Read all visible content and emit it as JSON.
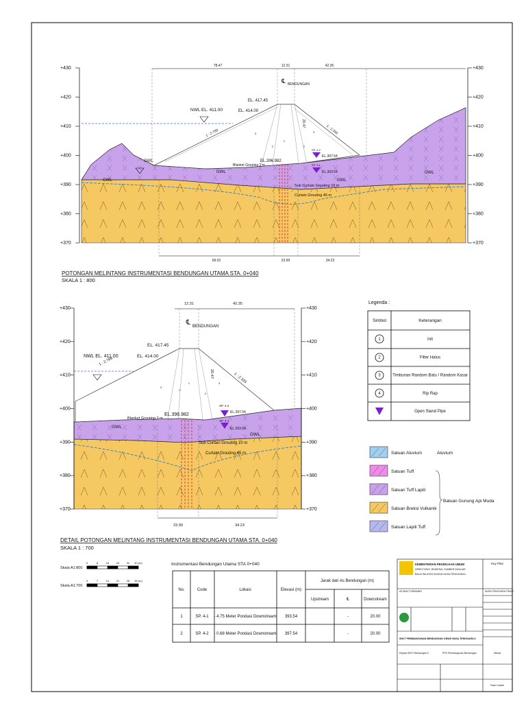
{
  "section_1": {
    "elevations": [
      "+430",
      "+420",
      "+410",
      "+400",
      "+390",
      "+380",
      "+370"
    ],
    "dimensions_top": [
      "78.47",
      "12.31",
      "42.35"
    ],
    "dimensions_bottom": [
      "69.02",
      "23.99",
      "34.23"
    ],
    "nwl": "NWL EL. 411.00",
    "crest": "EL. 417.45",
    "crest_2": "EL. 414.00",
    "centerline": "℄",
    "dam_name": "BENDUNGAN",
    "slope_up": "1 : 2.789",
    "slope_down": "1 : 2.333",
    "core_dim": "20.47",
    "gwl": "GWL",
    "blanket": "Blanket Grouting 3 m",
    "el_base": "EL.396.982",
    "sp_a": "SP. 4-2",
    "sp_b": "SP. 4-1",
    "el_sp_a": "EL.397.54",
    "el_sp_b": "EL.393.54",
    "sub_curtain": "Sub Curtain Grouting 10 m",
    "curtain": "Curtain Grouting 45 m",
    "title": "POTONGAN MELINTANG INSTRUMENTASI BENDUNGAN UTAMA STA. 0+040",
    "scale": "SKALA 1 : 800"
  },
  "section_2": {
    "elevations": [
      "+430",
      "+420",
      "+410",
      "+400",
      "+390",
      "+380",
      "+370"
    ],
    "dimensions_top": [
      "12.31",
      "42.35"
    ],
    "dimensions_bottom": [
      "23.99",
      "34.23"
    ],
    "nwl": "NWL EL. 411.00",
    "crest": "EL. 417.45",
    "crest_2": "EL. 414.00",
    "centerline": "℄",
    "dam_name": "BENDUNGAN",
    "slope_up": "1 : 2.789",
    "slope_down": "1 : 2.333",
    "core_dim": "20.47",
    "gwl": "GWL",
    "blanket": "Blanket Grouting 3 m",
    "el_base": "EL.396.982",
    "sp_a": "SP. 4-2",
    "sp_b": "SP. 4-1",
    "el_sp_a": "EL.397.54",
    "el_sp_b": "EL.393.54",
    "sub_curtain": "Sub Curtain Grouting 10 m",
    "curtain": "Curtain Grouting 45 m",
    "title": "DETAIL POTONGAN MELINTANG INSTRUMENTASI BENDUNGAN UTAMA STA. 0+040",
    "scale": "SKALA 1 : 700"
  },
  "legend": {
    "title": "Legenda :",
    "headers": [
      "Simbol",
      "Keterangan"
    ],
    "rows": [
      [
        "1",
        "Inti"
      ],
      [
        "2",
        "Filter Halus"
      ],
      [
        "3",
        "Timbunan Random Batu / Random Kasar"
      ],
      [
        "4",
        "Rip Rap"
      ]
    ],
    "stand_pipe": "Open Stand Pipe",
    "units": [
      "Satuan Aluvium",
      "Satuan Tuff",
      "Satuan Tuff Lapili",
      "Satuan Breksi Vulkanik",
      "Satuan Lapili Tuff"
    ],
    "aluvium": "Aluvium",
    "group": "Batuan Gunung Api Muda"
  },
  "scale_bars": [
    {
      "label": "Skala A1:800",
      "ticks": [
        "0",
        "8",
        "16",
        "24",
        "32",
        "40 (m)"
      ]
    },
    {
      "label": "Skala A1:700",
      "ticks": [
        "0",
        "7",
        "14",
        "21",
        "28",
        "35 (m)"
      ]
    }
  ],
  "table": {
    "title": "Instrumentasi Bendungan Utama STA 0+040",
    "headers": [
      "No.",
      "Code",
      "Lokasi",
      "Elevasi (m)",
      "Jarak dari As Bendungan (m)"
    ],
    "subheaders": [
      "Upstream",
      "℄",
      "Downstream"
    ],
    "rows": [
      [
        "1",
        "SP. 4-1",
        "- 4.75 Meter Pondasi Downstream",
        "393.54",
        "-",
        "20.00"
      ],
      [
        "2",
        "SP. 4-2",
        "- 0.68 Meter Pondasi Downstream",
        "397.54",
        "-",
        "20.00"
      ]
    ]
  },
  "title_block": {
    "ministry": "KEMENTERIAN PEKERJAAN UMUM",
    "directorate": "DIREKTORAT JENDERAL SUMBER DAYA AIR",
    "office": "BALAI WILAYAH SUNGAI NUSA TENGGARA II",
    "key_plan": "Key Plan",
    "province": "NUSA TENGGARA TIMUR",
    "drawing": "AS BUILT DRAWING",
    "project": "SNVT PEMBANGUNAN BENDUNGAN II BWS NUSA TENGGARA II",
    "head": "Kepala SNVT Bendungan II",
    "ppk": "PPK Pembangunan Bendungan",
    "made": "Dibuat",
    "leader": "Team Leader"
  }
}
